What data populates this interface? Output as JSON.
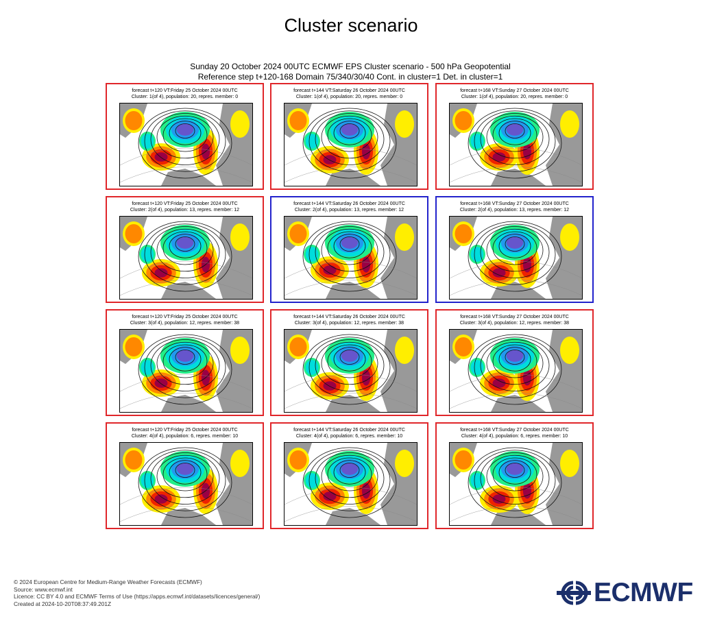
{
  "page": {
    "title": "Cluster scenario",
    "figure_title_line1": "Sunday 20 October 2024 00UTC ECMWF EPS Cluster scenario - 500 hPa Geopotential",
    "figure_title_line2": "Reference step t+120-168 Domain 75/340/30/40 Cont. in cluster=1 Det. in cluster=1"
  },
  "panels": [
    {
      "row": 1,
      "col": 1,
      "forecast": "forecast t+120 VT:Friday 25 October 2024 00UTC",
      "cluster": "Cluster: 1(of 4), population: 20, repres. member: 0",
      "selected": false
    },
    {
      "row": 1,
      "col": 2,
      "forecast": "forecast t+144 VT:Saturday 26 October 2024 00UTC",
      "cluster": "Cluster: 1(of 4), population: 20, repres. member: 0",
      "selected": false
    },
    {
      "row": 1,
      "col": 3,
      "forecast": "forecast t+168 VT:Sunday 27 October 2024 00UTC",
      "cluster": "Cluster: 1(of 4), population: 20, repres. member: 0",
      "selected": false
    },
    {
      "row": 2,
      "col": 1,
      "forecast": "forecast t+120 VT:Friday 25 October 2024 00UTC",
      "cluster": "Cluster: 2(of 4), population: 13, repres. member: 12",
      "selected": false
    },
    {
      "row": 2,
      "col": 2,
      "forecast": "forecast t+144 VT:Saturday 26 October 2024 00UTC",
      "cluster": "Cluster: 2(of 4), population: 13, repres. member: 12",
      "selected": true
    },
    {
      "row": 2,
      "col": 3,
      "forecast": "forecast t+168 VT:Sunday 27 October 2024 00UTC",
      "cluster": "Cluster: 2(of 4), population: 13, repres. member: 12",
      "selected": true
    },
    {
      "row": 3,
      "col": 1,
      "forecast": "forecast t+120 VT:Friday 25 October 2024 00UTC",
      "cluster": "Cluster: 3(of 4), population: 12, repres. member: 38",
      "selected": false
    },
    {
      "row": 3,
      "col": 2,
      "forecast": "forecast t+144 VT:Saturday 26 October 2024 00UTC",
      "cluster": "Cluster: 3(of 4), population: 12, repres. member: 38",
      "selected": false
    },
    {
      "row": 3,
      "col": 3,
      "forecast": "forecast t+168 VT:Sunday 27 October 2024 00UTC",
      "cluster": "Cluster: 3(of 4), population: 12, repres. member: 38",
      "selected": false
    },
    {
      "row": 4,
      "col": 1,
      "forecast": "forecast t+120 VT:Friday 25 October 2024 00UTC",
      "cluster": "Cluster: 4(of 4), population: 6, repres. member: 10",
      "selected": false
    },
    {
      "row": 4,
      "col": 2,
      "forecast": "forecast t+144 VT:Saturday 26 October 2024 00UTC",
      "cluster": "Cluster: 4(of 4), population: 6, repres. member: 10",
      "selected": false
    },
    {
      "row": 4,
      "col": 3,
      "forecast": "forecast t+168 VT:Sunday 27 October 2024 00UTC",
      "cluster": "Cluster: 4(of 4), population: 6, repres. member: 10",
      "selected": false
    }
  ],
  "footer": {
    "copyright": "© 2024 European Centre for Medium-Range Weather Forecasts (ECMWF)",
    "source": "Source: www.ecmwf.int",
    "licence": "Licence: CC BY 4.0 and ECMWF Terms of Use (https://apps.ecmwf.int/datasets/licences/general/)",
    "created": "Created at 2024-10-20T08:37:49.201Z"
  },
  "logo": {
    "text": "ECMWF",
    "color": "#1b2f6b"
  },
  "colors": {
    "cluster_border": "#e0262a",
    "selected_border": "#2222cc",
    "land": "#999999",
    "positive_anomaly": [
      "#ffee00",
      "#ff8800",
      "#ee2200",
      "#990044"
    ],
    "negative_anomaly": [
      "#22ee88",
      "#00dddd",
      "#2299ee",
      "#6655cc"
    ]
  }
}
